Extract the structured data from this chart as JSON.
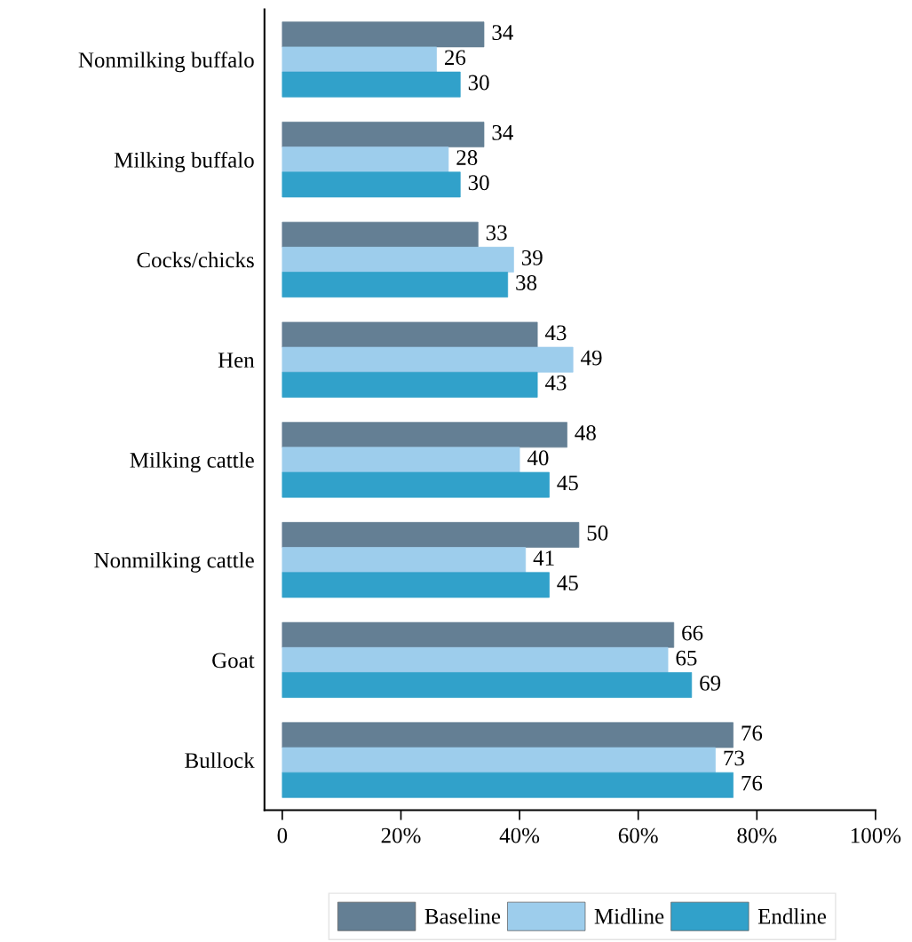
{
  "chart_data": {
    "type": "bar",
    "orientation": "horizontal",
    "categories": [
      "Nonmilking buffalo",
      "Milking buffalo",
      "Cocks/chicks",
      "Hen",
      "Milking cattle",
      "Nonmilking cattle",
      "Goat",
      "Bullock"
    ],
    "series": [
      {
        "name": "Baseline",
        "color": "#647f94",
        "values": [
          34,
          34,
          33,
          43,
          48,
          50,
          66,
          76
        ]
      },
      {
        "name": "Midline",
        "color": "#9dcdec",
        "values": [
          26,
          28,
          39,
          49,
          40,
          41,
          65,
          73
        ]
      },
      {
        "name": "Endline",
        "color": "#31a1ca",
        "values": [
          30,
          30,
          38,
          43,
          45,
          45,
          69,
          76
        ]
      }
    ],
    "xlim": [
      -3,
      100
    ],
    "xticks": [
      0,
      {
        "value": 20,
        "label": "20%"
      },
      {
        "value": 40,
        "label": "40%"
      },
      {
        "value": 60,
        "label": "60%"
      },
      {
        "value": 80,
        "label": "80%"
      },
      {
        "value": 100,
        "label": "100%"
      }
    ],
    "data_labels": true,
    "legend": "bottom",
    "grid": false
  }
}
